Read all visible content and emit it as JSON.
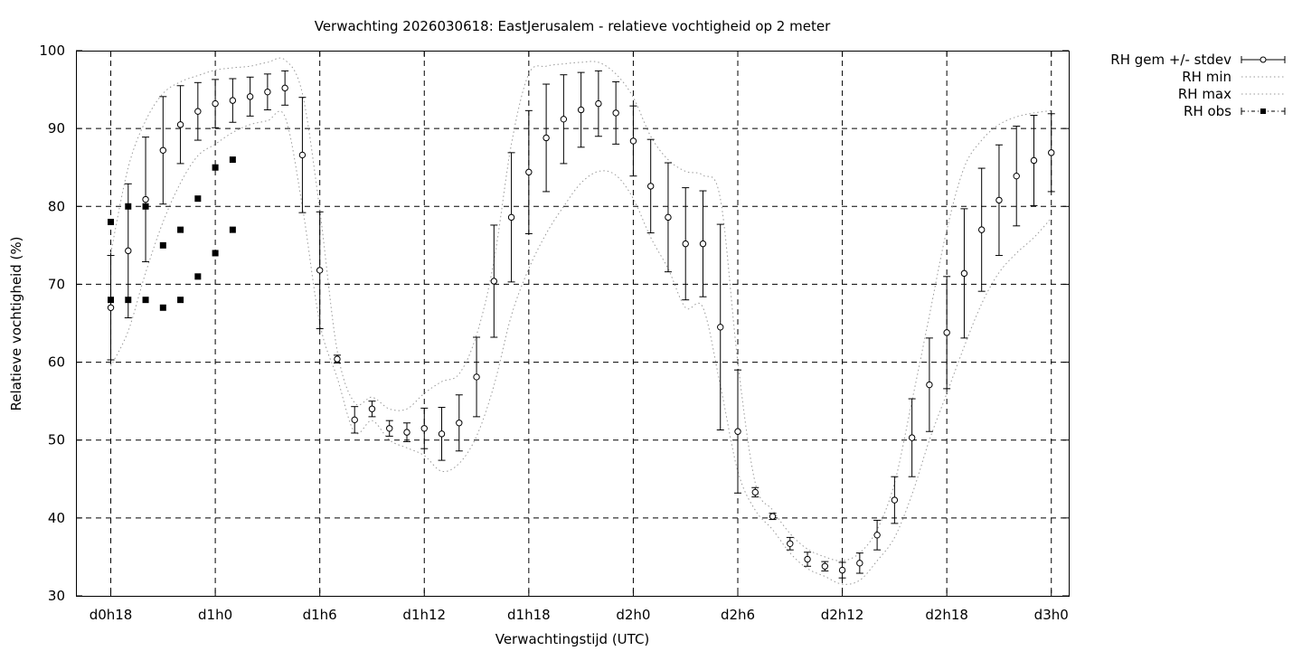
{
  "chart_data": {
    "type": "line",
    "title": "Verwachting 2026030618: EastJerusalem - relatieve vochtigheid op 2 meter",
    "xlabel": "Verwachtingstijd (UTC)",
    "ylabel": "Relatieve vochtigheid (%)",
    "x_unit": "forecast hour",
    "xlim": [
      -2,
      55
    ],
    "ylim": [
      30,
      100
    ],
    "grid": true,
    "legend_position": "outside-top-right",
    "x_ticks": [
      {
        "x": 0,
        "label": "d0h18"
      },
      {
        "x": 6,
        "label": "d1h0"
      },
      {
        "x": 12,
        "label": "d1h6"
      },
      {
        "x": 18,
        "label": "d1h12"
      },
      {
        "x": 24,
        "label": "d1h18"
      },
      {
        "x": 30,
        "label": "d2h0"
      },
      {
        "x": 36,
        "label": "d2h6"
      },
      {
        "x": 42,
        "label": "d2h12"
      },
      {
        "x": 48,
        "label": "d2h18"
      },
      {
        "x": 54,
        "label": "d3h0"
      }
    ],
    "y_ticks": [
      30,
      40,
      50,
      60,
      70,
      80,
      90,
      100
    ],
    "legend": [
      {
        "key": "mean",
        "label": "RH gem +/- stdev"
      },
      {
        "key": "min",
        "label": "RH min"
      },
      {
        "key": "max",
        "label": "RH max"
      },
      {
        "key": "obs",
        "label": "RH obs"
      }
    ],
    "colors": {
      "marks": "#000000",
      "band": "#999999"
    },
    "series": [
      {
        "key": "mean",
        "name": "RH gem +/- stdev",
        "x": [
          0,
          1,
          2,
          3,
          4,
          5,
          6,
          7,
          8,
          9,
          10,
          11,
          12,
          13,
          14,
          15,
          16,
          17,
          18,
          19,
          20,
          21,
          22,
          23,
          24,
          25,
          26,
          27,
          28,
          29,
          30,
          31,
          32,
          33,
          34,
          35,
          36,
          37,
          38,
          39,
          40,
          41,
          42,
          43,
          44,
          45,
          46,
          47,
          48,
          49,
          50,
          51,
          52,
          53,
          54
        ],
        "y": [
          67.0,
          74.3,
          80.9,
          87.2,
          90.5,
          92.2,
          93.2,
          93.6,
          94.1,
          94.7,
          95.2,
          86.6,
          71.8,
          60.4,
          52.6,
          54.0,
          51.5,
          51.0,
          51.5,
          50.8,
          52.2,
          58.1,
          70.4,
          78.6,
          84.4,
          88.8,
          91.2,
          92.4,
          93.2,
          92.0,
          88.4,
          82.6,
          78.6,
          75.2,
          75.2,
          64.5,
          51.1,
          43.3,
          40.2,
          36.7,
          34.7,
          33.8,
          33.3,
          34.2,
          37.8,
          42.3,
          50.3,
          57.1,
          63.8,
          71.4,
          77.0,
          80.8,
          83.9,
          85.9,
          86.9
        ],
        "stdev": [
          6.7,
          8.6,
          8.0,
          6.9,
          5.0,
          3.7,
          3.1,
          2.8,
          2.5,
          2.3,
          2.2,
          7.4,
          7.5,
          0.5,
          1.7,
          1.0,
          1.0,
          1.2,
          2.6,
          3.4,
          3.6,
          5.1,
          7.2,
          8.3,
          7.9,
          6.9,
          5.7,
          4.8,
          4.2,
          4.0,
          4.5,
          6.0,
          7.0,
          7.2,
          6.8,
          13.2,
          7.9,
          0.6,
          0.4,
          0.8,
          0.9,
          0.6,
          1.0,
          1.3,
          1.9,
          3.0,
          5.0,
          6.0,
          7.2,
          8.3,
          7.9,
          7.1,
          6.4,
          5.8,
          5.0
        ]
      },
      {
        "key": "min",
        "name": "RH min",
        "x": [
          0,
          1,
          2,
          3,
          4,
          5,
          6,
          7,
          8,
          9,
          10,
          11,
          12,
          13,
          14,
          15,
          16,
          17,
          18,
          19,
          20,
          21,
          22,
          23,
          24,
          25,
          26,
          27,
          28,
          29,
          30,
          31,
          32,
          33,
          34,
          35,
          36,
          37,
          38,
          39,
          40,
          41,
          42,
          43,
          44,
          45,
          46,
          47,
          48,
          49,
          50,
          51,
          52,
          53,
          54
        ],
        "y": [
          59.5,
          64.0,
          71.5,
          78.0,
          83.0,
          86.5,
          88.0,
          89.5,
          90.5,
          91.0,
          91.5,
          80.0,
          65.0,
          58.0,
          51.0,
          52.5,
          50.0,
          49.0,
          48.0,
          46.0,
          47.0,
          50.5,
          57.0,
          66.0,
          72.0,
          76.5,
          80.0,
          83.0,
          84.5,
          84.0,
          81.0,
          76.0,
          72.0,
          67.0,
          67.0,
          57.0,
          46.0,
          41.0,
          38.5,
          35.5,
          33.5,
          32.5,
          31.5,
          32.0,
          34.5,
          37.5,
          43.0,
          50.0,
          56.0,
          62.0,
          67.5,
          71.5,
          74.0,
          76.0,
          78.5
        ]
      },
      {
        "key": "max",
        "name": "RH max",
        "x": [
          0,
          1,
          2,
          3,
          4,
          5,
          6,
          7,
          8,
          9,
          10,
          11,
          12,
          13,
          14,
          15,
          16,
          17,
          18,
          19,
          20,
          21,
          22,
          23,
          24,
          25,
          26,
          27,
          28,
          29,
          30,
          31,
          32,
          33,
          34,
          35,
          36,
          37,
          38,
          39,
          40,
          41,
          42,
          43,
          44,
          45,
          46,
          47,
          48,
          49,
          50,
          51,
          52,
          53,
          54
        ],
        "y": [
          74.0,
          85.0,
          91.0,
          94.5,
          96.0,
          96.8,
          97.5,
          97.8,
          98.0,
          98.5,
          98.8,
          94.5,
          79.5,
          61.5,
          54.8,
          55.5,
          54.0,
          54.0,
          56.0,
          57.5,
          58.5,
          63.5,
          73.0,
          88.0,
          97.0,
          98.0,
          98.3,
          98.5,
          98.5,
          97.0,
          94.0,
          89.0,
          86.0,
          84.5,
          84.0,
          81.0,
          60.0,
          44.5,
          41.0,
          38.0,
          36.0,
          35.0,
          34.5,
          35.5,
          38.5,
          44.5,
          55.0,
          66.0,
          77.0,
          85.0,
          88.5,
          90.5,
          91.5,
          92.0,
          92.3
        ]
      },
      {
        "key": "obs",
        "name": "RH obs",
        "points": [
          {
            "x": 0,
            "y": 78
          },
          {
            "x": 0,
            "y": 68
          },
          {
            "x": 1,
            "y": 80
          },
          {
            "x": 1,
            "y": 68
          },
          {
            "x": 2,
            "y": 80
          },
          {
            "x": 2,
            "y": 68
          },
          {
            "x": 3,
            "y": 75
          },
          {
            "x": 3,
            "y": 67
          },
          {
            "x": 4,
            "y": 77
          },
          {
            "x": 4,
            "y": 68
          },
          {
            "x": 5,
            "y": 81
          },
          {
            "x": 5,
            "y": 71
          },
          {
            "x": 6,
            "y": 85
          },
          {
            "x": 6,
            "y": 74
          },
          {
            "x": 7,
            "y": 86
          },
          {
            "x": 7,
            "y": 77
          }
        ]
      }
    ]
  }
}
